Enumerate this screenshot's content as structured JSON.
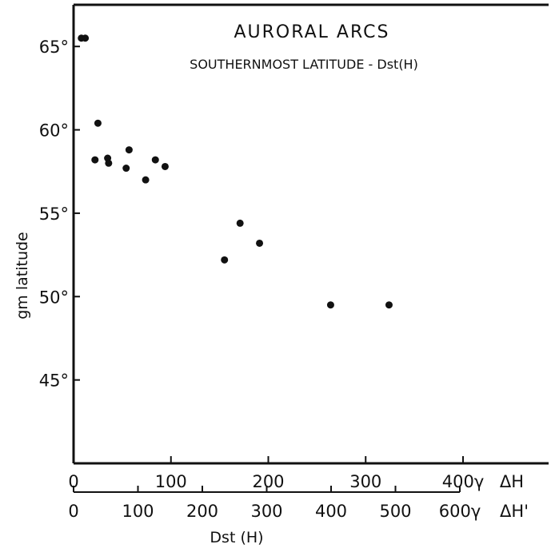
{
  "chart_data": {
    "type": "scatter",
    "title": "AURORAL ARCS",
    "subtitle": "SOUTHERNMOST LATITUDE - Dst(H)",
    "ylabel": "gm latitude",
    "xlabel": "Dst (H)",
    "ylim": [
      40,
      67.5
    ],
    "xlim": [
      0,
      490
    ],
    "y_ticks": [
      {
        "value": 45,
        "label": "45°"
      },
      {
        "value": 50,
        "label": "50°"
      },
      {
        "value": 55,
        "label": "55°"
      },
      {
        "value": 60,
        "label": "60°"
      },
      {
        "value": 65,
        "label": "65°"
      }
    ],
    "x_axis_H": {
      "ticks": [
        {
          "value": 0,
          "label": "0"
        },
        {
          "value": 100,
          "label": "100"
        },
        {
          "value": 200,
          "label": "200"
        },
        {
          "value": 300,
          "label": "300"
        },
        {
          "value": 400,
          "label": "400γ"
        }
      ],
      "unit_label": "ΔH"
    },
    "x_axis_H_prime": {
      "ticks": [
        {
          "value": 0,
          "label": "0"
        },
        {
          "value": 100,
          "label": "100"
        },
        {
          "value": 200,
          "label": "200"
        },
        {
          "value": 300,
          "label": "300"
        },
        {
          "value": 400,
          "label": "400"
        },
        {
          "value": 500,
          "label": "500"
        },
        {
          "value": 600,
          "label": "600γ"
        }
      ],
      "unit_label": "ΔH'"
    },
    "points": [
      {
        "x": 8,
        "y": 65.5
      },
      {
        "x": 12,
        "y": 65.5
      },
      {
        "x": 22,
        "y": 58.2
      },
      {
        "x": 25,
        "y": 60.4
      },
      {
        "x": 35,
        "y": 58.3
      },
      {
        "x": 36,
        "y": 58.0
      },
      {
        "x": 54,
        "y": 57.7
      },
      {
        "x": 57,
        "y": 58.8
      },
      {
        "x": 74,
        "y": 57.0
      },
      {
        "x": 84,
        "y": 58.2
      },
      {
        "x": 94,
        "y": 57.8
      },
      {
        "x": 155,
        "y": 52.2
      },
      {
        "x": 171,
        "y": 54.4
      },
      {
        "x": 191,
        "y": 53.2
      },
      {
        "x": 264,
        "y": 49.5
      },
      {
        "x": 324,
        "y": 49.5
      }
    ]
  }
}
